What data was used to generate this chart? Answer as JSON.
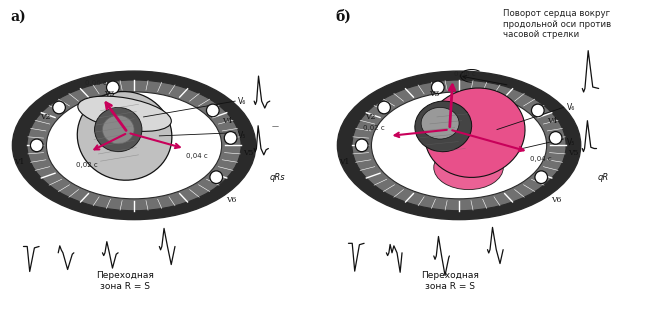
{
  "panel_a_label": "а)",
  "panel_b_label": "б)",
  "panel_b_title": "Поворот сердца вокруг\nпродольной оси против\nчасовой стрелки",
  "panel_a_bottom_text": "Переходная\nзона R = S",
  "panel_b_bottom_text": "Переходная\nзона R = S",
  "panel_a_ecg_label": "qRs",
  "panel_b_ecg_label": "qR",
  "arrow_color": "#c8005a",
  "pink_fill": "#e8508a",
  "dark_color": "#111111",
  "ring_dark": "#2a2a2a",
  "ring_gray": "#707070",
  "heart_gray": "#888888",
  "bg_color": "#ffffff",
  "text_color": "#222222"
}
